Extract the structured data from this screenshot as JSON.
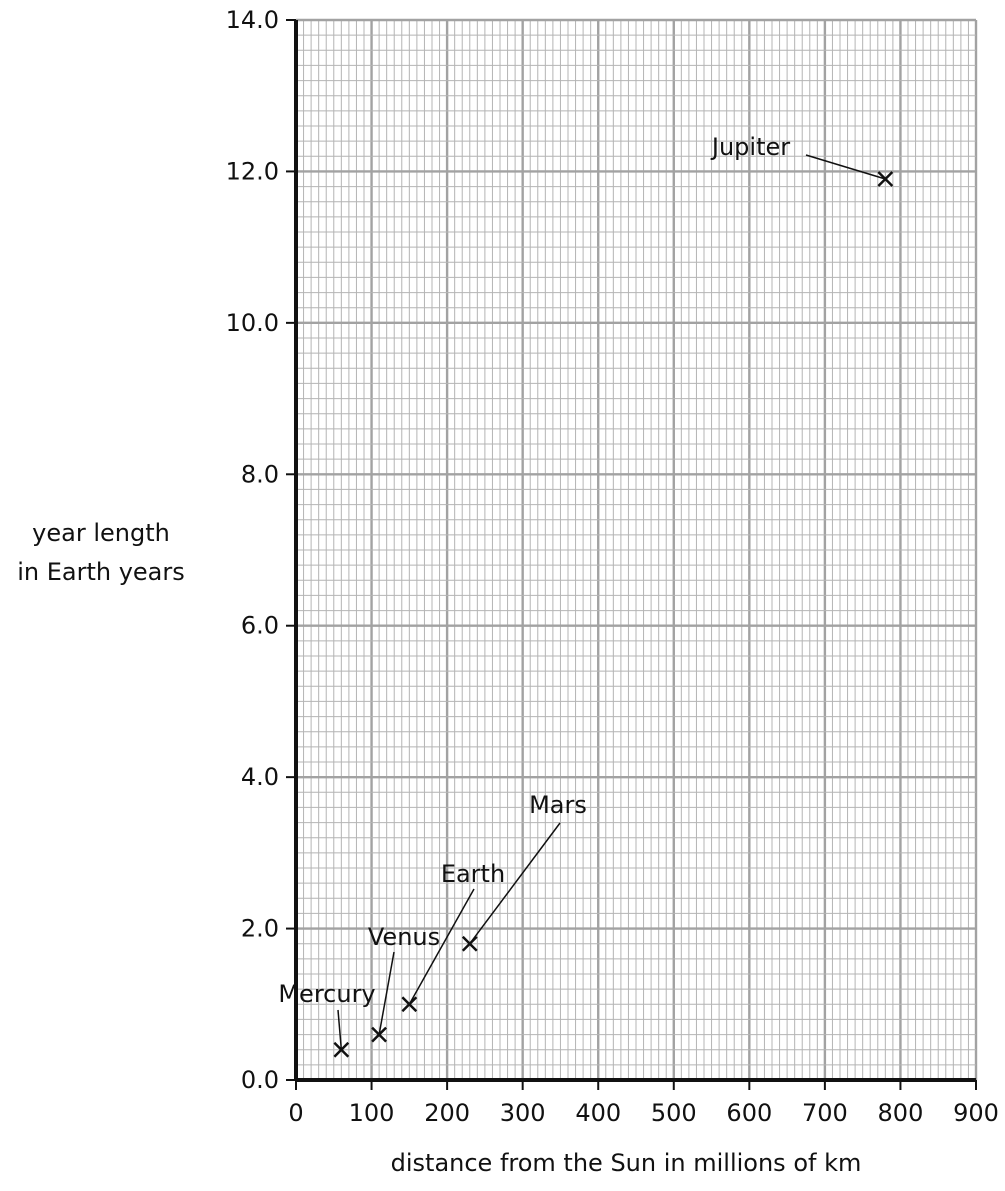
{
  "chart_data": {
    "type": "scatter",
    "title": "",
    "xlabel": "distance from the Sun in millions of km",
    "ylabel": [
      "year length",
      "in Earth years"
    ],
    "xlim": [
      0,
      900
    ],
    "ylim": [
      0,
      14
    ],
    "x_ticks": [
      "0",
      "100",
      "200",
      "300",
      "400",
      "500",
      "600",
      "700",
      "800",
      "900"
    ],
    "y_ticks": [
      "0.0",
      "2.0",
      "4.0",
      "6.0",
      "8.0",
      "10.0",
      "12.0",
      "14.0"
    ],
    "grid": true,
    "marker": "x",
    "points": [
      {
        "label": "Mercury",
        "x": 60,
        "y": 0.4
      },
      {
        "label": "Venus",
        "x": 110,
        "y": 0.6
      },
      {
        "label": "Earth",
        "x": 150,
        "y": 1.0
      },
      {
        "label": "Mars",
        "x": 230,
        "y": 1.8
      },
      {
        "label": "Jupiter",
        "x": 780,
        "y": 11.9
      }
    ]
  }
}
